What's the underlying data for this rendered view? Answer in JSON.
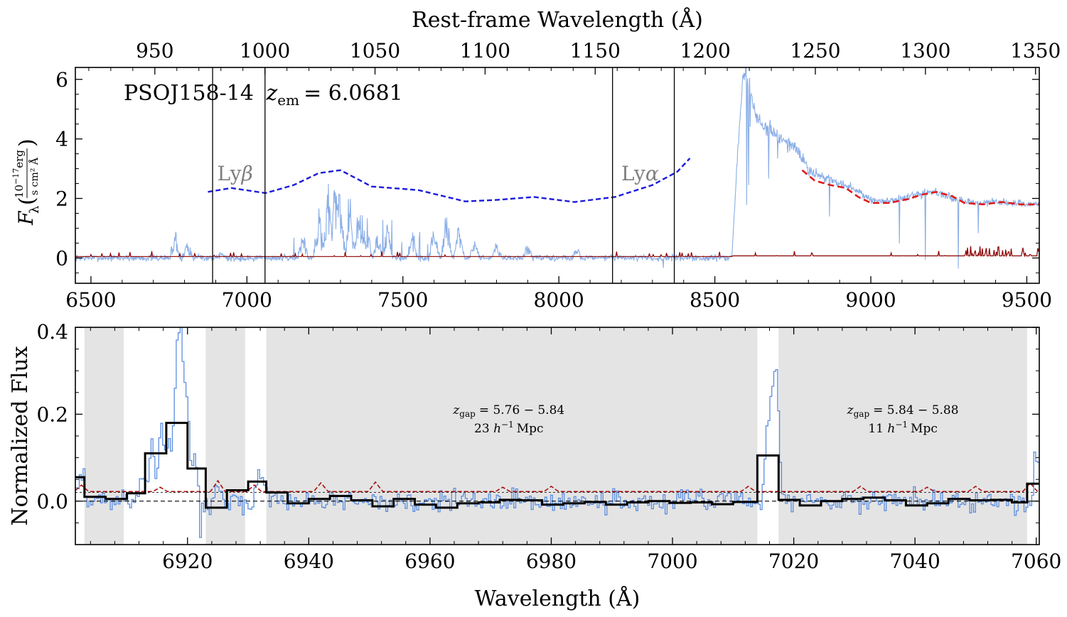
{
  "chart_data": [
    {
      "type": "line",
      "id": "top",
      "xlabel_top": "Rest-frame Wavelength (Å)",
      "ylabel_main": "F",
      "ylabel_sub": "λ",
      "ylabel_unit_num": "10",
      "ylabel_unit_exp": "−17",
      "ylabel_unit_num2": "erg",
      "ylabel_unit_den": "s cm² Å",
      "annotation_name": "PSOJ158-14",
      "annotation_z_symbol": "z",
      "annotation_z_sub": "em",
      "annotation_z_value": "= 6.0681",
      "xlim": [
        6450,
        9540
      ],
      "ylim": [
        -0.85,
        6.4
      ],
      "rest_xlim": [
        913.9,
        1351.7
      ],
      "xticks": [
        6500,
        7000,
        7500,
        8000,
        8500,
        9000,
        9500
      ],
      "xtick_labels": [
        "6500",
        "7000",
        "7500",
        "8000",
        "8500",
        "9000",
        "9500"
      ],
      "yticks": [
        0,
        2,
        4,
        6
      ],
      "ytick_labels": [
        "0",
        "2",
        "4",
        "6"
      ],
      "rest_ticks": [
        950,
        1000,
        1050,
        1100,
        1150,
        1200,
        1250,
        1300,
        1350
      ],
      "rest_tick_labels": [
        "950",
        "1000",
        "1050",
        "1100",
        "1150",
        "1200",
        "1250",
        "1300",
        "1350"
      ],
      "vlines": [
        6890,
        7058,
        8172,
        8370
      ],
      "line_labels": [
        {
          "symbol": "Ly",
          "greek": "β",
          "x": 6905,
          "y": 2.9
        },
        {
          "symbol": "Ly",
          "greek": "α",
          "x": 8200,
          "y": 2.9
        }
      ],
      "colors": {
        "flux": "#8aaee6",
        "error": "#8b0000",
        "continuum_blue": "#1a1adb",
        "continuum_red": "#e01b1b"
      },
      "continuum_blue": {
        "x": [
          6875,
          6950,
          7060,
          7150,
          7230,
          7300,
          7400,
          7550,
          7700,
          7800,
          7920,
          8050,
          8180,
          8300,
          8380,
          8420
        ],
        "y": [
          2.22,
          2.35,
          2.18,
          2.45,
          2.85,
          2.95,
          2.4,
          2.28,
          1.9,
          1.95,
          2.05,
          1.88,
          2.05,
          2.45,
          2.9,
          3.35
        ]
      },
      "continuum_red": {
        "x": [
          8780,
          8820,
          8870,
          8920,
          8960,
          9000,
          9060,
          9120,
          9160,
          9210,
          9260,
          9300,
          9360,
          9420,
          9480,
          9540
        ],
        "y": [
          2.95,
          2.6,
          2.45,
          2.35,
          2.05,
          1.85,
          1.85,
          1.98,
          2.12,
          2.22,
          2.08,
          1.85,
          1.8,
          1.88,
          1.8,
          1.8
        ]
      },
      "flux_envelope": {
        "x": [
          8555,
          8570,
          8590,
          8600,
          8605,
          8615,
          8630,
          8660,
          8720,
          8760,
          8800,
          8850,
          8900,
          8950,
          9000,
          9050,
          9100,
          9150,
          9200,
          9250,
          9300,
          9350,
          9400,
          9450,
          9500,
          9540
        ],
        "y": [
          0.05,
          3.0,
          5.95,
          6.35,
          6.1,
          5.5,
          4.8,
          4.4,
          3.95,
          3.7,
          2.95,
          2.7,
          2.5,
          2.3,
          1.95,
          1.9,
          2.0,
          2.12,
          2.25,
          2.05,
          1.9,
          1.85,
          1.9,
          1.85,
          1.8,
          1.8
        ]
      }
    },
    {
      "type": "line",
      "id": "bottom",
      "xlabel": "Wavelength (Å)",
      "ylabel": "Normalized Flux",
      "xlim": [
        6901.5,
        7060.5
      ],
      "ylim": [
        -0.1,
        0.4
      ],
      "xticks": [
        6920,
        6940,
        6960,
        6980,
        7000,
        7020,
        7040,
        7060
      ],
      "xtick_labels": [
        "6920",
        "6940",
        "6960",
        "6980",
        "7000",
        "7020",
        "7040",
        "7060"
      ],
      "yticks": [
        0.0,
        0.2,
        0.4
      ],
      "ytick_labels": [
        "0.0",
        "0.2",
        "0.4"
      ],
      "colors": {
        "flux": "#5b8ee0",
        "binned": "#000000",
        "error": "#a81010",
        "shade": "#e4e4e4"
      },
      "shaded_regions": [
        [
          6903,
          6909.5
        ],
        [
          6923,
          6929.5
        ],
        [
          6933,
          7014
        ],
        [
          7017.5,
          7058.5
        ]
      ],
      "gap_labels": [
        {
          "z_symbol": "z",
          "z_sub": "gap",
          "range": "= 5.76 − 5.84",
          "dist_value": "23",
          "h_symbol": "h",
          "h_exp": "−1",
          "unit": "Mpc",
          "x": 6973
        },
        {
          "z_symbol": "z",
          "z_sub": "gap",
          "range": "= 5.84 − 5.88",
          "dist_value": "11",
          "h_symbol": "h",
          "h_exp": "−1",
          "unit": "Mpc",
          "x": 7038
        }
      ],
      "binned_flux": {
        "edges": [
          6901.5,
          6903,
          6906.5,
          6910,
          6913,
          6916.5,
          6920,
          6923,
          6926.5,
          6930,
          6933,
          6936.5,
          6940,
          6943.5,
          6947,
          6950.5,
          6954,
          6957.5,
          6961,
          6964.5,
          6968,
          6971.5,
          6975,
          6978.5,
          6982,
          6985.5,
          6989,
          6992.5,
          6996,
          6999.5,
          7003,
          7006.5,
          7010,
          7014,
          7017.5,
          7021,
          7024.5,
          7028,
          7031.5,
          7035,
          7038.5,
          7042,
          7045.5,
          7049,
          7052.5,
          7056,
          7058.5,
          7060.5
        ],
        "values": [
          0.055,
          0.01,
          0.005,
          0.018,
          0.11,
          0.18,
          0.075,
          -0.015,
          0.025,
          0.045,
          0.02,
          -0.005,
          0.005,
          0.012,
          0.002,
          -0.012,
          0.005,
          -0.008,
          -0.015,
          -0.005,
          -0.003,
          0.003,
          0.002,
          -0.008,
          -0.005,
          -0.002,
          -0.008,
          -0.003,
          0.0,
          -0.004,
          -0.003,
          -0.007,
          -0.002,
          0.105,
          0.003,
          -0.01,
          0.0,
          0.005,
          0.008,
          0.002,
          -0.01,
          -0.005,
          0.005,
          0.002,
          0.003,
          -0.003,
          0.04
        ]
      },
      "reference_level": 0.02,
      "zero_level": 0.0
    }
  ]
}
